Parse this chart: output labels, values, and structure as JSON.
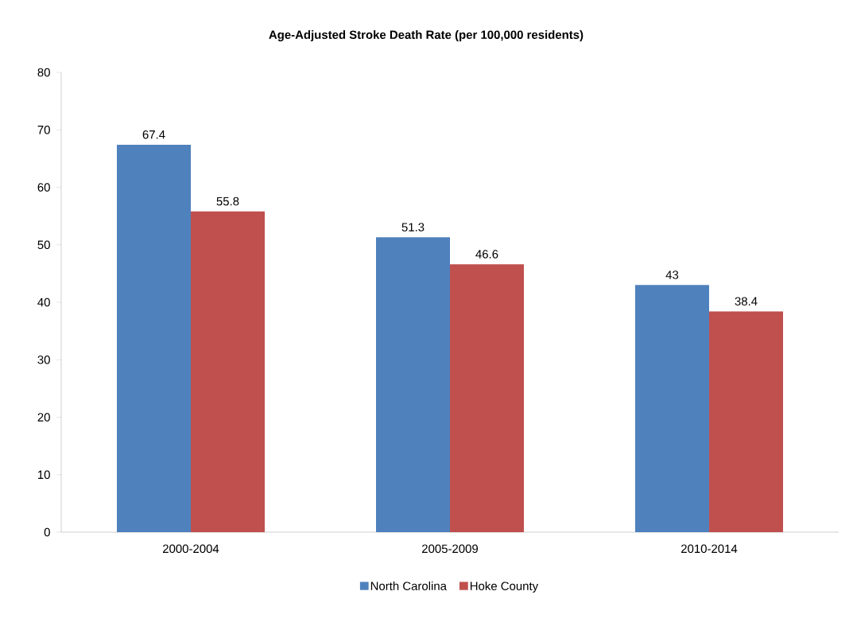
{
  "chart_data": {
    "type": "bar",
    "title": "Age-Adjusted Stroke Death Rate (per 100,000 residents)",
    "categories": [
      "2000-2004",
      "2005-2009",
      "2010-2014"
    ],
    "series": [
      {
        "name": "North Carolina",
        "color": "#4f81bd",
        "values": [
          67.4,
          51.3,
          43
        ]
      },
      {
        "name": "Hoke County",
        "color": "#c0504d",
        "values": [
          55.8,
          46.6,
          38.4
        ]
      }
    ],
    "ylim": [
      0,
      80
    ],
    "yticks": [
      0,
      10,
      20,
      30,
      40,
      50,
      60,
      70,
      80
    ],
    "grid": false,
    "legend": "bottom",
    "data_labels": true
  }
}
